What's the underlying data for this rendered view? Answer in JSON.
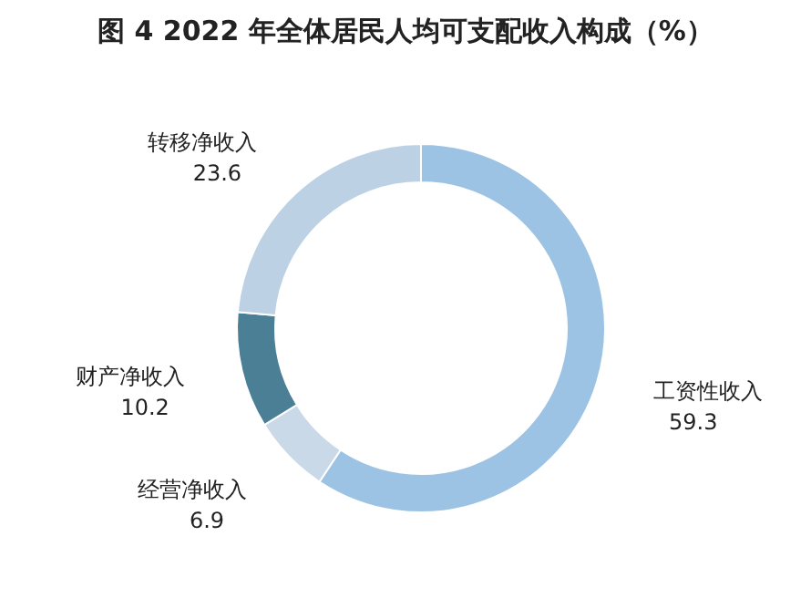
{
  "chart_data": {
    "type": "donut",
    "title": "图 4  2022 年全体居民人均可支配收入构成（%）",
    "categories": [
      "工资性收入",
      "经营净收入",
      "财产净收入",
      "转移净收入"
    ],
    "values": [
      59.3,
      6.9,
      10.2,
      23.6
    ],
    "colors": [
      "#9cc3e4",
      "#c9d9e8",
      "#4a7f96",
      "#bcd2e4"
    ],
    "data_labels": true
  }
}
